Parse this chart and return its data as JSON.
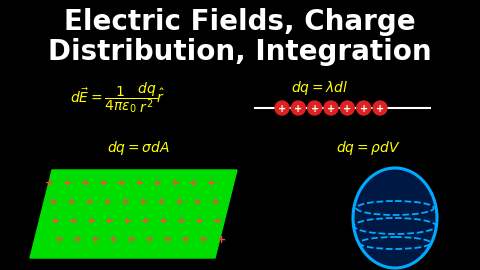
{
  "background_color": "#000000",
  "title_line1": "Electric Fields, Charge",
  "title_line2": "Distribution, Integration",
  "title_color": "#ffffff",
  "title_fontsize": 20,
  "eq_color": "#ffff00",
  "eq_fontsize": 10,
  "line_color": "#ffffff",
  "charge_color": "#dd2222",
  "plus_color": "#ff4444",
  "parallelogram_color": "#00dd00",
  "sphere_edge_color": "#00aaff",
  "sphere_face_color": "#001844"
}
